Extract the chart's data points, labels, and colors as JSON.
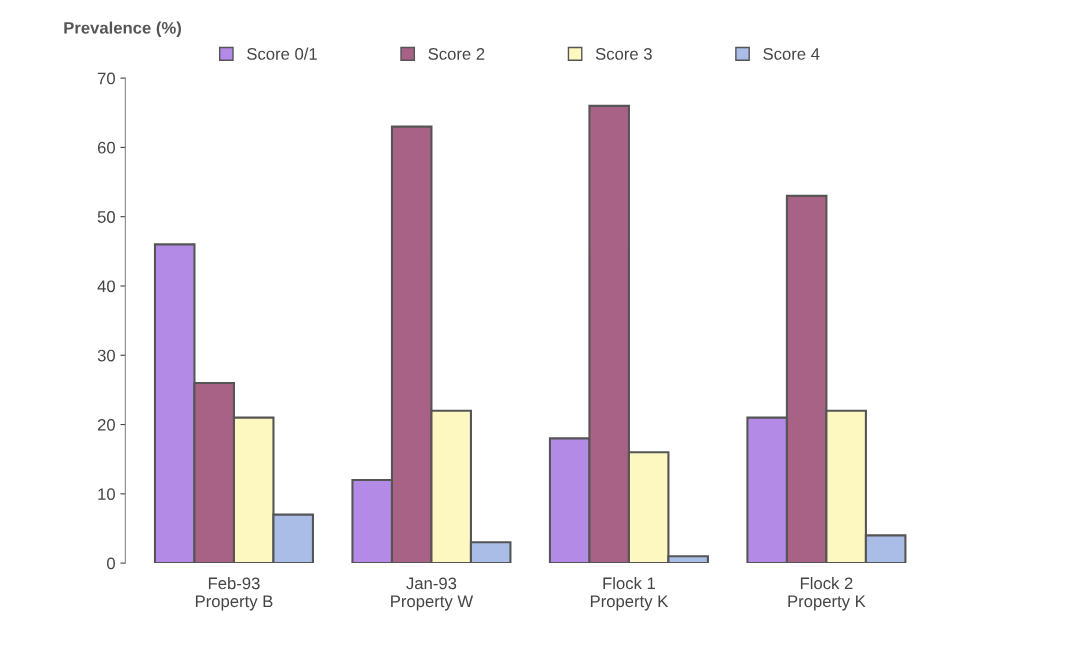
{
  "chart_data": {
    "type": "bar",
    "ylabel": "Prevalence (%)",
    "categories": [
      "Feb-93\nProperty B",
      "Jan-93\nProperty W",
      "Flock 1\nProperty K",
      "Flock 2\nProperty K"
    ],
    "series": [
      {
        "name": "Score 0/1",
        "color": "#b38ae6",
        "values": [
          46,
          12,
          18,
          21
        ]
      },
      {
        "name": "Score 2",
        "color": "#a86285",
        "values": [
          26,
          63,
          66,
          53
        ]
      },
      {
        "name": "Score 3",
        "color": "#fdf8c0",
        "values": [
          21,
          22,
          16,
          22
        ]
      },
      {
        "name": "Score 4",
        "color": "#a9bde6",
        "values": [
          7,
          3,
          1,
          4
        ]
      }
    ],
    "ylim": [
      0,
      70
    ],
    "yticks": [
      0,
      10,
      20,
      30,
      40,
      50,
      60,
      70
    ],
    "grid": false,
    "legend": "top"
  }
}
